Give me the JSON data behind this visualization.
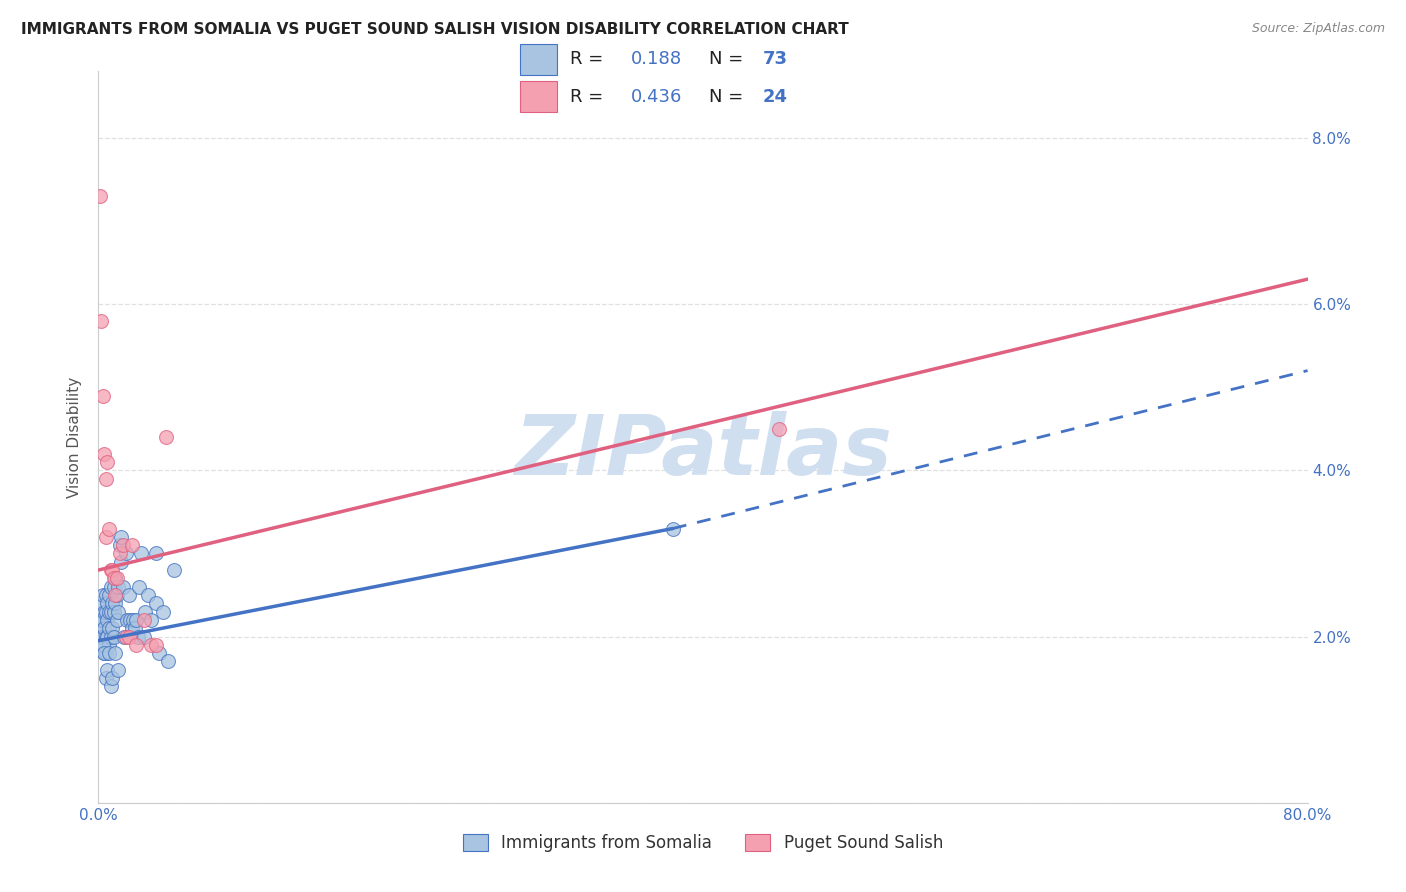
{
  "title": "IMMIGRANTS FROM SOMALIA VS PUGET SOUND SALISH VISION DISABILITY CORRELATION CHART",
  "source": "Source: ZipAtlas.com",
  "xlabel_blue": "Immigrants from Somalia",
  "xlabel_pink": "Puget Sound Salish",
  "ylabel": "Vision Disability",
  "xlim": [
    0.0,
    0.8
  ],
  "ylim": [
    0.0,
    0.088
  ],
  "xtick_vals": [
    0.0,
    0.1,
    0.2,
    0.3,
    0.4,
    0.5,
    0.6,
    0.7,
    0.8
  ],
  "xtick_labels": [
    "0.0%",
    "",
    "",
    "",
    "",
    "",
    "",
    "",
    "80.0%"
  ],
  "ytick_vals": [
    0.0,
    0.02,
    0.04,
    0.06,
    0.08
  ],
  "ytick_labels": [
    "",
    "2.0%",
    "4.0%",
    "6.0%",
    "8.0%"
  ],
  "legend_R_blue": "0.188",
  "legend_N_blue": "73",
  "legend_R_pink": "0.436",
  "legend_N_pink": "24",
  "color_blue": "#a8c4e0",
  "color_blue_line": "#4472c4",
  "color_pink": "#f4a0b0",
  "color_pink_line": "#e06080",
  "watermark_color": "#d0dff0",
  "background_color": "#ffffff",
  "grid_color": "#e0e0e0",
  "tick_label_color": "#4472c4",
  "ylabel_color": "#555555",
  "blue_line_x0": 0.0,
  "blue_line_y0": 0.0195,
  "blue_line_x1": 0.38,
  "blue_line_y1": 0.033,
  "blue_line_dash_x1": 0.8,
  "blue_line_dash_y1": 0.052,
  "pink_line_x0": 0.0,
  "pink_line_y0": 0.028,
  "pink_line_x1": 0.8,
  "pink_line_y1": 0.063,
  "blue_scatter_x": [
    0.001,
    0.001,
    0.002,
    0.002,
    0.002,
    0.003,
    0.003,
    0.003,
    0.003,
    0.004,
    0.004,
    0.004,
    0.005,
    0.005,
    0.005,
    0.005,
    0.006,
    0.006,
    0.006,
    0.007,
    0.007,
    0.007,
    0.007,
    0.008,
    0.008,
    0.008,
    0.009,
    0.009,
    0.01,
    0.01,
    0.01,
    0.011,
    0.011,
    0.012,
    0.012,
    0.013,
    0.013,
    0.014,
    0.015,
    0.015,
    0.016,
    0.017,
    0.018,
    0.019,
    0.02,
    0.021,
    0.022,
    0.023,
    0.024,
    0.025,
    0.026,
    0.027,
    0.028,
    0.03,
    0.031,
    0.033,
    0.035,
    0.038,
    0.04,
    0.043,
    0.046,
    0.05,
    0.003,
    0.004,
    0.005,
    0.006,
    0.007,
    0.008,
    0.009,
    0.011,
    0.013,
    0.038,
    0.38
  ],
  "blue_scatter_y": [
    0.022,
    0.021,
    0.024,
    0.022,
    0.02,
    0.025,
    0.022,
    0.02,
    0.019,
    0.023,
    0.021,
    0.018,
    0.025,
    0.023,
    0.02,
    0.018,
    0.024,
    0.022,
    0.02,
    0.025,
    0.023,
    0.021,
    0.019,
    0.026,
    0.023,
    0.02,
    0.024,
    0.021,
    0.026,
    0.023,
    0.02,
    0.027,
    0.024,
    0.025,
    0.022,
    0.026,
    0.023,
    0.031,
    0.029,
    0.032,
    0.026,
    0.02,
    0.03,
    0.022,
    0.025,
    0.022,
    0.021,
    0.022,
    0.021,
    0.022,
    0.02,
    0.026,
    0.03,
    0.02,
    0.023,
    0.025,
    0.022,
    0.024,
    0.018,
    0.023,
    0.017,
    0.028,
    0.019,
    0.018,
    0.015,
    0.016,
    0.018,
    0.014,
    0.015,
    0.018,
    0.016,
    0.03,
    0.033
  ],
  "pink_scatter_x": [
    0.001,
    0.002,
    0.003,
    0.004,
    0.005,
    0.005,
    0.006,
    0.007,
    0.008,
    0.009,
    0.01,
    0.011,
    0.012,
    0.014,
    0.016,
    0.018,
    0.02,
    0.022,
    0.025,
    0.03,
    0.035,
    0.038,
    0.045,
    0.45
  ],
  "pink_scatter_y": [
    0.073,
    0.058,
    0.049,
    0.042,
    0.032,
    0.039,
    0.041,
    0.033,
    0.028,
    0.028,
    0.027,
    0.025,
    0.027,
    0.03,
    0.031,
    0.02,
    0.02,
    0.031,
    0.019,
    0.022,
    0.019,
    0.019,
    0.044,
    0.045
  ]
}
